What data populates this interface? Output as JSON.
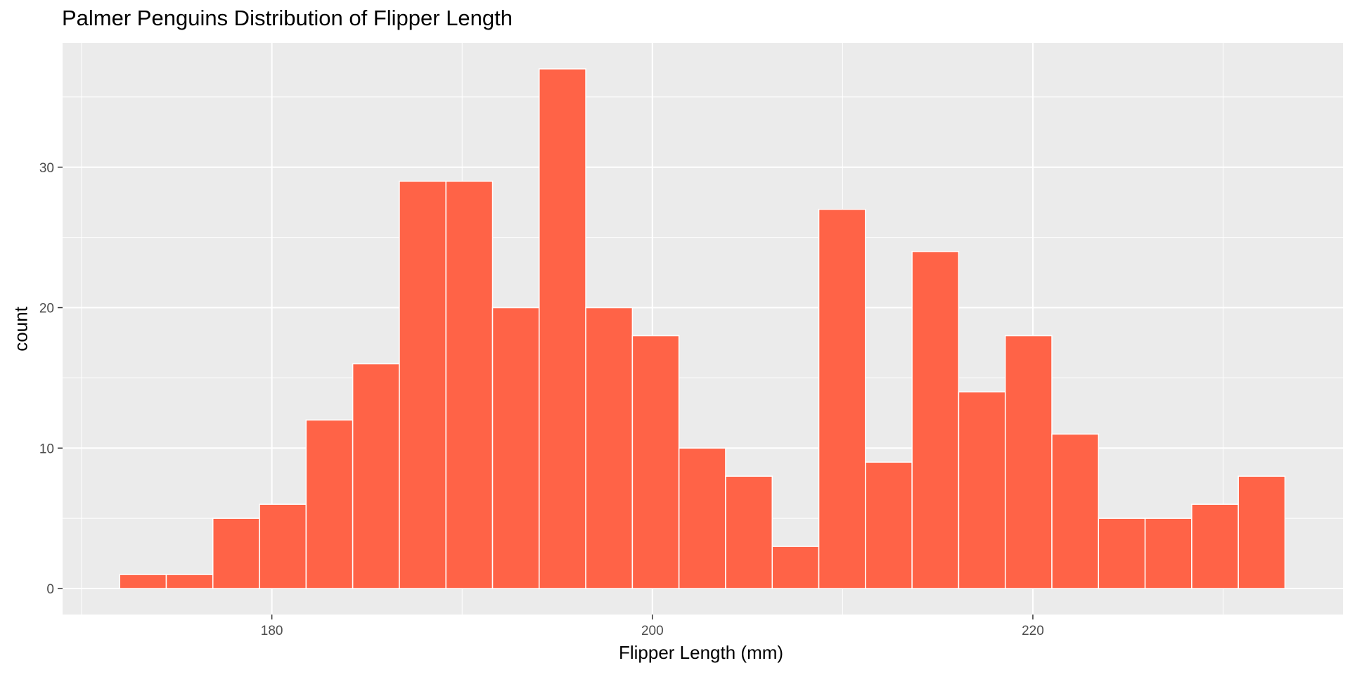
{
  "chart_data": {
    "type": "bar",
    "title": "Palmer Penguins Distribution of Flipper Length",
    "xlabel": "Flipper Length (mm)",
    "ylabel": "count",
    "bin_width": 2.45,
    "bins": [
      {
        "x_start": 172.0,
        "x_end": 174.45,
        "count": 1
      },
      {
        "x_start": 174.45,
        "x_end": 176.9,
        "count": 1
      },
      {
        "x_start": 176.9,
        "x_end": 179.35,
        "count": 5
      },
      {
        "x_start": 179.35,
        "x_end": 181.8,
        "count": 6
      },
      {
        "x_start": 181.8,
        "x_end": 184.25,
        "count": 12
      },
      {
        "x_start": 184.25,
        "x_end": 186.7,
        "count": 16
      },
      {
        "x_start": 186.7,
        "x_end": 189.15,
        "count": 29
      },
      {
        "x_start": 189.15,
        "x_end": 191.6,
        "count": 29
      },
      {
        "x_start": 191.6,
        "x_end": 194.05,
        "count": 20
      },
      {
        "x_start": 194.05,
        "x_end": 196.5,
        "count": 37
      },
      {
        "x_start": 196.5,
        "x_end": 198.95,
        "count": 20
      },
      {
        "x_start": 198.95,
        "x_end": 201.4,
        "count": 18
      },
      {
        "x_start": 201.4,
        "x_end": 203.85,
        "count": 10
      },
      {
        "x_start": 203.85,
        "x_end": 206.3,
        "count": 8
      },
      {
        "x_start": 206.3,
        "x_end": 208.75,
        "count": 3
      },
      {
        "x_start": 208.75,
        "x_end": 211.2,
        "count": 27
      },
      {
        "x_start": 211.2,
        "x_end": 213.65,
        "count": 9
      },
      {
        "x_start": 213.65,
        "x_end": 216.1,
        "count": 24
      },
      {
        "x_start": 216.1,
        "x_end": 218.55,
        "count": 14
      },
      {
        "x_start": 218.55,
        "x_end": 221.0,
        "count": 18
      },
      {
        "x_start": 221.0,
        "x_end": 223.45,
        "count": 11
      },
      {
        "x_start": 223.45,
        "x_end": 225.9,
        "count": 5
      },
      {
        "x_start": 225.9,
        "x_end": 228.35,
        "count": 5
      },
      {
        "x_start": 228.35,
        "x_end": 230.8,
        "count": 6
      },
      {
        "x_start": 230.8,
        "x_end": 233.25,
        "count": 8
      }
    ],
    "xlim": [
      169.0,
      236.3
    ],
    "ylim": [
      -1.85,
      38.85
    ],
    "x_ticks": [
      180,
      200,
      220
    ],
    "y_ticks": [
      0,
      10,
      20,
      30
    ],
    "grid": true,
    "colors": {
      "bar_fill": "#FF6347",
      "bar_outline": "#FFFFFF",
      "panel_background": "#EBEBEB",
      "grid": "#FFFFFF"
    }
  }
}
